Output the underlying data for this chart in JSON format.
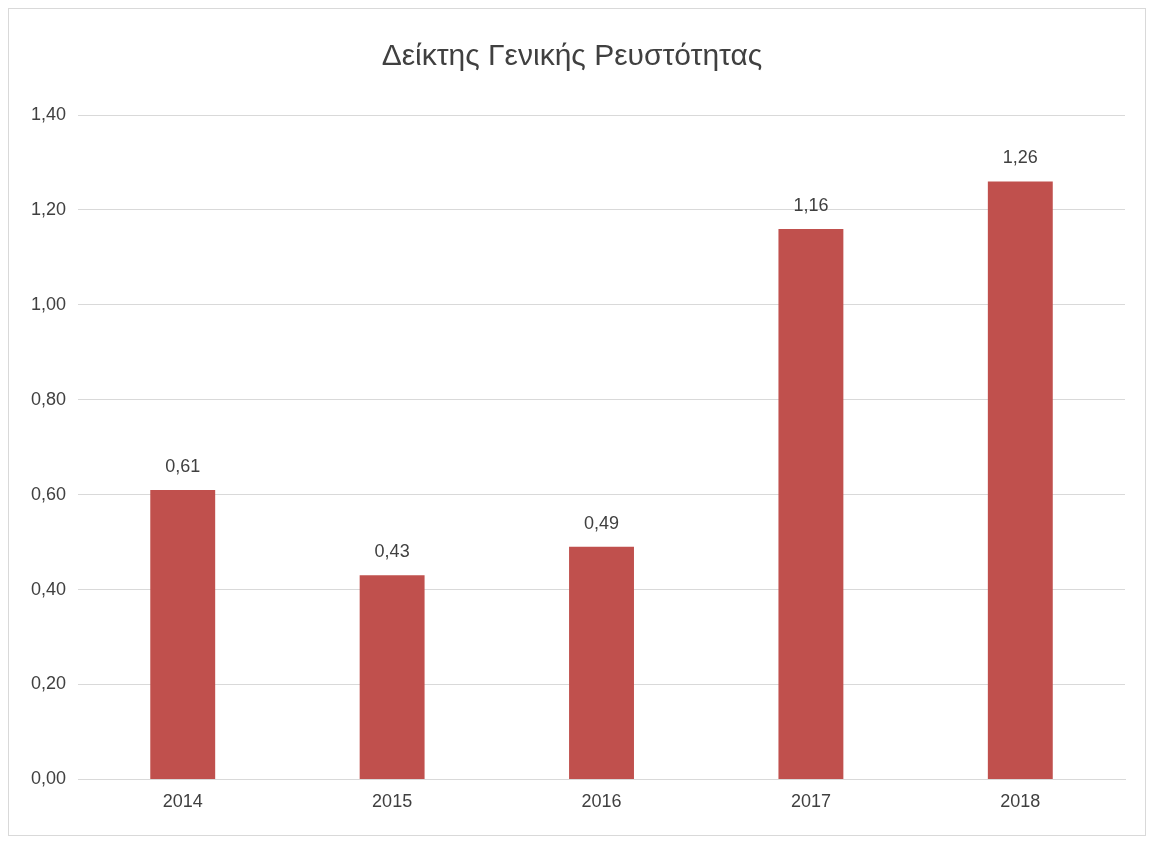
{
  "chart_data": {
    "type": "bar",
    "title": "Δείκτης Γενικής Ρευστότητας",
    "categories": [
      "2014",
      "2015",
      "2016",
      "2017",
      "2018"
    ],
    "values": [
      0.61,
      0.43,
      0.49,
      1.16,
      1.26
    ],
    "value_labels": [
      "0,61",
      "0,43",
      "0,49",
      "1,16",
      "1,26"
    ],
    "color": "#c0504d",
    "ylim": [
      0,
      1.4
    ],
    "yticks": [
      {
        "value": 0,
        "label": "0,00"
      },
      {
        "value": 0.2,
        "label": "0,20"
      },
      {
        "value": 0.4,
        "label": "0,40"
      },
      {
        "value": 0.6,
        "label": "0,60"
      },
      {
        "value": 0.8,
        "label": "0,80"
      },
      {
        "value": 1.0,
        "label": "1,00"
      },
      {
        "value": 1.2,
        "label": "1,20"
      },
      {
        "value": 1.4,
        "label": "1,40"
      }
    ],
    "grid": "y",
    "legend": false
  }
}
